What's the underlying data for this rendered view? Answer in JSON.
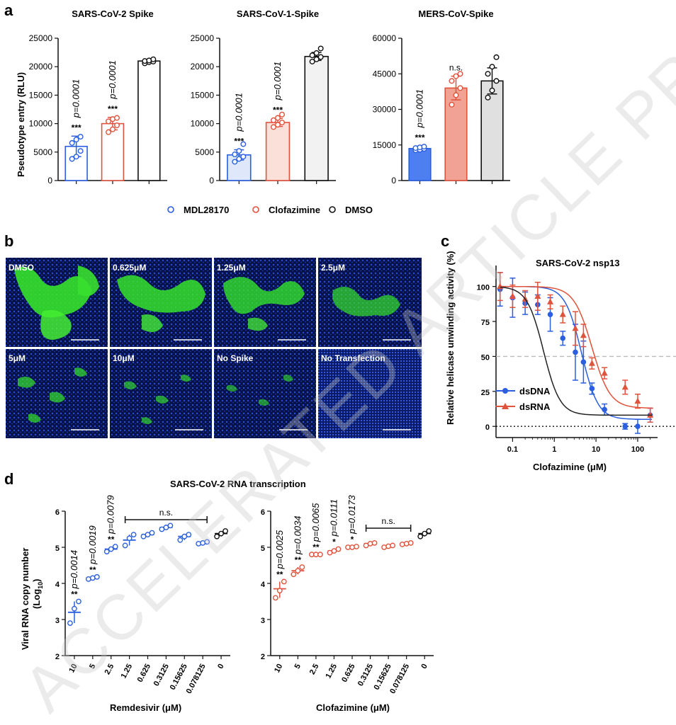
{
  "panel_letters": {
    "a": "a",
    "b": "b",
    "c": "c",
    "d": "d"
  },
  "watermark": "ACCELERATED ARTICLE PREVIEW",
  "panel_a": {
    "ylabel": "Pseudotype entry (RLU)",
    "legend": [
      "MDL28170",
      "Clofazimine",
      "DMSO"
    ]
  },
  "panel_b": {
    "labels": [
      "DMSO",
      "0.625μM",
      "1.25μM",
      "2.5μM",
      "5μM",
      "10μM",
      "No Spike",
      "No Transfection"
    ]
  },
  "panel_c": {
    "title": "SARS-CoV-2 nsp13",
    "ylabel": "Relative helicase unwinding activity (%)",
    "xlabel": "Clofazimine  (μM)",
    "legend": [
      "dsDNA",
      "dsRNA"
    ]
  },
  "panel_d": {
    "title": "SARS-CoV-2 RNA transcription",
    "ylabel_main": "Viral RNA copy number",
    "ylabel_sub": "(Log",
    "ylabel_subscript": "10",
    "ylabel_close": ")",
    "xlabel_left": "Remdesivir (μM)",
    "xlabel_right": "Clofazimine (μM)",
    "ns": "n.s."
  },
  "colors": {
    "blue": "#2b5fe0",
    "red": "#e0533c",
    "black": "#111111",
    "lightblue": "#c9d9f7",
    "lightred": "#f7cdc4",
    "gray": "#e6e6e6"
  },
  "chart_data": [
    {
      "type": "bar",
      "title": "SARS-CoV-2 Spike",
      "categories": [
        "MDL28170",
        "Clofazimine",
        "DMSO"
      ],
      "values": [
        6000,
        10000,
        21000
      ],
      "errors": [
        1800,
        1100,
        300
      ],
      "points": [
        [
          3800,
          4200,
          5200,
          6600,
          7200,
          7700
        ],
        [
          8500,
          9000,
          9700,
          10400,
          10800,
          11000
        ],
        [
          20600,
          20800,
          20900,
          21000,
          21100,
          21300
        ]
      ],
      "annotations": [
        {
          "stars": "***",
          "p": "p=0.0001"
        },
        {
          "stars": "***",
          "p": "p=0.0001"
        },
        {
          "stars": "",
          "p": ""
        }
      ],
      "ylim": [
        0,
        25000
      ],
      "yticks": [
        0,
        5000,
        10000,
        15000,
        20000,
        25000
      ],
      "ylabel": "Pseudotype entry (RLU)"
    },
    {
      "type": "bar",
      "title": "SARS-CoV-1-Spike",
      "categories": [
        "MDL28170",
        "Clofazimine",
        "DMSO"
      ],
      "values": [
        4500,
        10200,
        21800
      ],
      "errors": [
        900,
        700,
        700
      ],
      "points": [
        [
          3300,
          3800,
          4200,
          4600,
          5200,
          6400
        ],
        [
          9400,
          9800,
          10200,
          10600,
          11000,
          11600
        ],
        [
          20900,
          21300,
          21700,
          22000,
          22400,
          23200
        ]
      ],
      "annotations": [
        {
          "stars": "***",
          "p": "p=0.0001"
        },
        {
          "stars": "***",
          "p": "p=0.0001"
        },
        {
          "stars": "",
          "p": ""
        }
      ],
      "ylim": [
        0,
        25000
      ],
      "yticks": [
        0,
        5000,
        10000,
        15000,
        20000,
        25000
      ]
    },
    {
      "type": "bar",
      "title": "MERS-CoV-Spike",
      "categories": [
        "MDL28170",
        "Clofazimine",
        "DMSO"
      ],
      "values": [
        13500,
        39000,
        42000
      ],
      "errors": [
        1000,
        5000,
        5500
      ],
      "points": [
        [
          12800,
          13000,
          13400,
          13700,
          14000,
          14300
        ],
        [
          32000,
          36000,
          39000,
          42000,
          44000,
          45000
        ],
        [
          35000,
          38000,
          42000,
          45000,
          48000,
          52000
        ]
      ],
      "annotations": [
        {
          "stars": "***",
          "p": "p=0.0001"
        },
        {
          "stars": "",
          "p": "n.s."
        },
        {
          "stars": "",
          "p": ""
        }
      ],
      "ylim": [
        0,
        60000
      ],
      "yticks": [
        0,
        15000,
        30000,
        45000,
        60000
      ]
    },
    {
      "type": "line",
      "title": "SARS-CoV-2 nsp13",
      "xscale": "log",
      "xlim": [
        0.04,
        300
      ],
      "ylim": [
        -8,
        115
      ],
      "xticks": [
        0.1,
        1,
        10,
        100
      ],
      "xticklabels": [
        "0.1",
        "1",
        "10",
        "100"
      ],
      "yticks": [
        0,
        25,
        50,
        75,
        100
      ],
      "xlabel": "Clofazimine  (μM)",
      "ylabel": "Relative helicase unwinding activity (%)",
      "reference_lines": [
        50,
        0
      ],
      "series": [
        {
          "name": "dsDNA",
          "x": [
            0.05,
            0.1,
            0.2,
            0.4,
            0.8,
            1.6,
            3.2,
            5,
            8,
            16,
            50,
            100,
            200
          ],
          "y": [
            98,
            92,
            88,
            87,
            80,
            63,
            53,
            46,
            27,
            12,
            0,
            0,
            8
          ],
          "err": [
            12,
            14,
            8,
            7,
            12,
            5,
            20,
            15,
            4,
            4,
            2,
            5,
            5
          ],
          "ic50": 4.5,
          "hill": 2.2,
          "bottom": 5
        },
        {
          "name": "dsRNA",
          "x": [
            0.05,
            0.1,
            0.2,
            0.4,
            0.8,
            1.6,
            3.2,
            5,
            8,
            16,
            50,
            100,
            200
          ],
          "y": [
            100,
            93,
            91,
            93,
            89,
            80,
            70,
            65,
            45,
            38,
            28,
            18,
            8
          ],
          "err": [
            10,
            8,
            6,
            10,
            5,
            6,
            12,
            8,
            4,
            4,
            5,
            5,
            5
          ],
          "ic50": 8,
          "hill": 2.0,
          "bottom": 13
        },
        {
          "name": "fit-black",
          "x": [],
          "y": [],
          "ic50": 0.55,
          "hill": 2.2,
          "bottom": 8
        }
      ]
    },
    {
      "type": "scatter",
      "title": "SARS-CoV-2 RNA transcription",
      "groups": [
        {
          "name": "Remdesivir",
          "color": "#2b5fe0",
          "categories": [
            "10",
            "5",
            "2.5",
            "1.25",
            "0.625",
            "0.3125",
            "0.15625",
            "0.078125",
            "0"
          ],
          "means": [
            3.2,
            4.15,
            4.95,
            5.2,
            5.35,
            5.55,
            5.3,
            5.12,
            5.38
          ],
          "points": [
            [
              2.9,
              3.3,
              3.5
            ],
            [
              4.12,
              4.15,
              4.18
            ],
            [
              4.88,
              4.95,
              5.02
            ],
            [
              5.05,
              5.25,
              5.35
            ],
            [
              5.3,
              5.35,
              5.4
            ],
            [
              5.5,
              5.55,
              5.6
            ],
            [
              5.2,
              5.3,
              5.35
            ],
            [
              5.1,
              5.12,
              5.15
            ],
            [
              5.3,
              5.38,
              5.45
            ]
          ],
          "annotations": [
            {
              "stars": "**",
              "p": "p=0.0014"
            },
            {
              "stars": "**",
              "p": "p=0.0019"
            },
            {
              "stars": "**",
              "p": "p=0.0079"
            },
            {
              "stars": "",
              "p": ""
            },
            {
              "stars": "",
              "p": ""
            },
            {
              "stars": "",
              "p": ""
            },
            {
              "stars": "",
              "p": ""
            },
            {
              "stars": "",
              "p": ""
            },
            {
              "stars": "",
              "p": ""
            }
          ],
          "ns_range": [
            3,
            7
          ],
          "ylim": [
            2,
            6
          ],
          "yticks": [
            2,
            3,
            4,
            5,
            6
          ],
          "xlabel": "Remdesivir (μM)"
        },
        {
          "name": "Clofazimine",
          "color": "#e0533c",
          "categories": [
            "10",
            "5",
            "2.5",
            "1.25",
            "0.625",
            "0.3125",
            "0.15625",
            "0.078125",
            "0"
          ],
          "means": [
            3.85,
            4.35,
            4.8,
            4.9,
            5.0,
            5.1,
            5.03,
            5.1,
            5.38
          ],
          "points": [
            [
              3.6,
              3.8,
              4.05
            ],
            [
              4.25,
              4.35,
              4.45
            ],
            [
              4.8,
              4.8,
              4.8
            ],
            [
              4.85,
              4.9,
              4.95
            ],
            [
              5.0,
              5.0,
              5.02
            ],
            [
              5.05,
              5.1,
              5.12
            ],
            [
              5.0,
              5.03,
              5.05
            ],
            [
              5.08,
              5.1,
              5.12
            ],
            [
              5.3,
              5.38,
              5.45
            ]
          ],
          "annotations": [
            {
              "stars": "**",
              "p": "p=0.0025"
            },
            {
              "stars": "**",
              "p": "p=0.0034"
            },
            {
              "stars": "**",
              "p": "p=0.0065"
            },
            {
              "stars": "*",
              "p": "p=0.0111"
            },
            {
              "stars": "*",
              "p": "p=0.0173"
            },
            {
              "stars": "",
              "p": ""
            },
            {
              "stars": "",
              "p": ""
            },
            {
              "stars": "",
              "p": ""
            },
            {
              "stars": "",
              "p": ""
            }
          ],
          "ns_range": [
            5,
            7
          ],
          "ylim": [
            2,
            6
          ],
          "yticks": [
            2,
            3,
            4,
            5,
            6
          ],
          "xlabel": "Clofazimine (μM)"
        }
      ]
    }
  ]
}
